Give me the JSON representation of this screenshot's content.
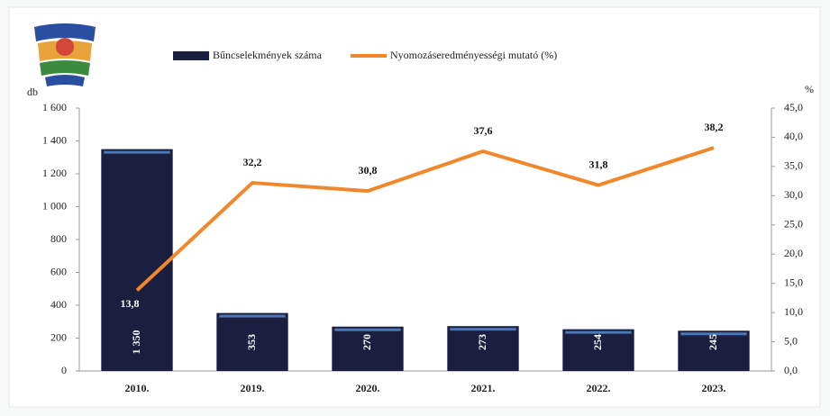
{
  "chart_data": {
    "type": "bar",
    "categories": [
      "2010.",
      "2019.",
      "2020.",
      "2021.",
      "2022.",
      "2023."
    ],
    "series": [
      {
        "name": "Bűncselekmények száma",
        "type": "bar",
        "color": "#1b1f3f",
        "values": [
          1350,
          353,
          270,
          273,
          254,
          245
        ],
        "value_labels": [
          "1 350",
          "353",
          "270",
          "273",
          "254",
          "245"
        ]
      },
      {
        "name": "Nyomozáseredményességi mutató (%)",
        "type": "line",
        "axis": "y2",
        "color": "#f0872a",
        "values": [
          13.8,
          32.2,
          30.8,
          37.6,
          31.8,
          38.2
        ],
        "value_labels": [
          "13,8",
          "32,2",
          "30,8",
          "37,6",
          "31,8",
          "38,2"
        ]
      }
    ],
    "ylabel": "db",
    "y2label": "%",
    "ylim": [
      0,
      1600
    ],
    "yticks": [
      0,
      200,
      400,
      600,
      800,
      {
        "value": 1000,
        "label": "1 000"
      },
      {
        "value": 1200,
        "label": "1 200"
      },
      {
        "value": 1400,
        "label": "1 400"
      },
      {
        "value": 1600,
        "label": "1 600"
      }
    ],
    "y2lim": [
      0,
      45
    ],
    "y2ticks": [
      {
        "value": 0,
        "label": "0,0"
      },
      {
        "value": 5,
        "label": "5,0"
      },
      {
        "value": 10,
        "label": "10,0"
      },
      {
        "value": 15,
        "label": "15,0"
      },
      {
        "value": 20,
        "label": "20,0"
      },
      {
        "value": 25,
        "label": "25,0"
      },
      {
        "value": 30,
        "label": "30,0"
      },
      {
        "value": 35,
        "label": "35,0"
      },
      {
        "value": 40,
        "label": "40,0"
      },
      {
        "value": 45,
        "label": "45,0"
      }
    ],
    "grid": false,
    "legend": "top"
  }
}
